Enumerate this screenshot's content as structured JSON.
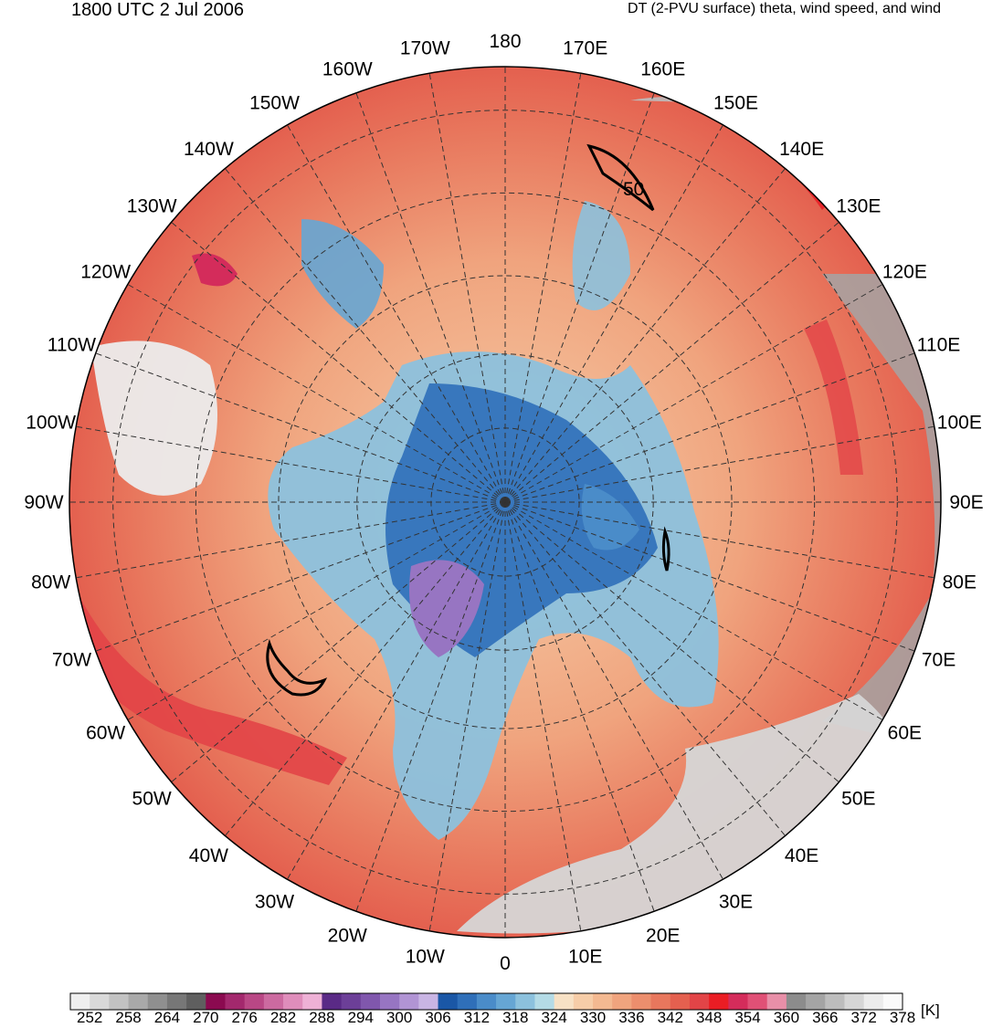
{
  "header": {
    "valid_time": "1800 UTC 2 Jul 2006",
    "field_title": "DT (2-PVU surface) theta, wind speed, and wind"
  },
  "map": {
    "projection": "north-polar-stereographic",
    "contour_label": "50",
    "longitude_labels": [
      "180",
      "170E",
      "160E",
      "150E",
      "140E",
      "130E",
      "120E",
      "110E",
      "100E",
      "90E",
      "80E",
      "70E",
      "60E",
      "50E",
      "40E",
      "30E",
      "20E",
      "10E",
      "0",
      "10W",
      "20W",
      "30W",
      "40W",
      "50W",
      "60W",
      "70W",
      "80W",
      "90W",
      "100W",
      "110W",
      "120W",
      "130W",
      "140W",
      "150W",
      "160W",
      "170W"
    ]
  },
  "colorbar": {
    "unit": "[K]",
    "tick_labels": [
      "252",
      "258",
      "264",
      "270",
      "276",
      "282",
      "288",
      "294",
      "300",
      "306",
      "312",
      "318",
      "324",
      "330",
      "336",
      "342",
      "348",
      "354",
      "360",
      "366",
      "372",
      "378"
    ],
    "colors": [
      "#efefef",
      "#d9d9d9",
      "#c2c2c2",
      "#a9a9a9",
      "#8f8f8f",
      "#777777",
      "#5f5f5f",
      "#8b0a50",
      "#a3286d",
      "#b94785",
      "#cc6aa0",
      "#df8dbb",
      "#eeb1d6",
      "#5a2a86",
      "#6c3f98",
      "#8057ad",
      "#9775c2",
      "#b194d4",
      "#c9b5e4",
      "#1a57a6",
      "#2f6fb9",
      "#4a8cc9",
      "#66a6d4",
      "#8cc1dd",
      "#b4dbe6",
      "#f7e1c5",
      "#f6cda8",
      "#f3b991",
      "#f0a47e",
      "#ec8e6d",
      "#e8775d",
      "#e4604f",
      "#e24447",
      "#ea1d24",
      "#d42c5b",
      "#e05076",
      "#e88fa8",
      "#8c8c8c",
      "#a4a4a4",
      "#bdbdbd",
      "#d6d6d6",
      "#ececec",
      "#fafafa"
    ]
  }
}
